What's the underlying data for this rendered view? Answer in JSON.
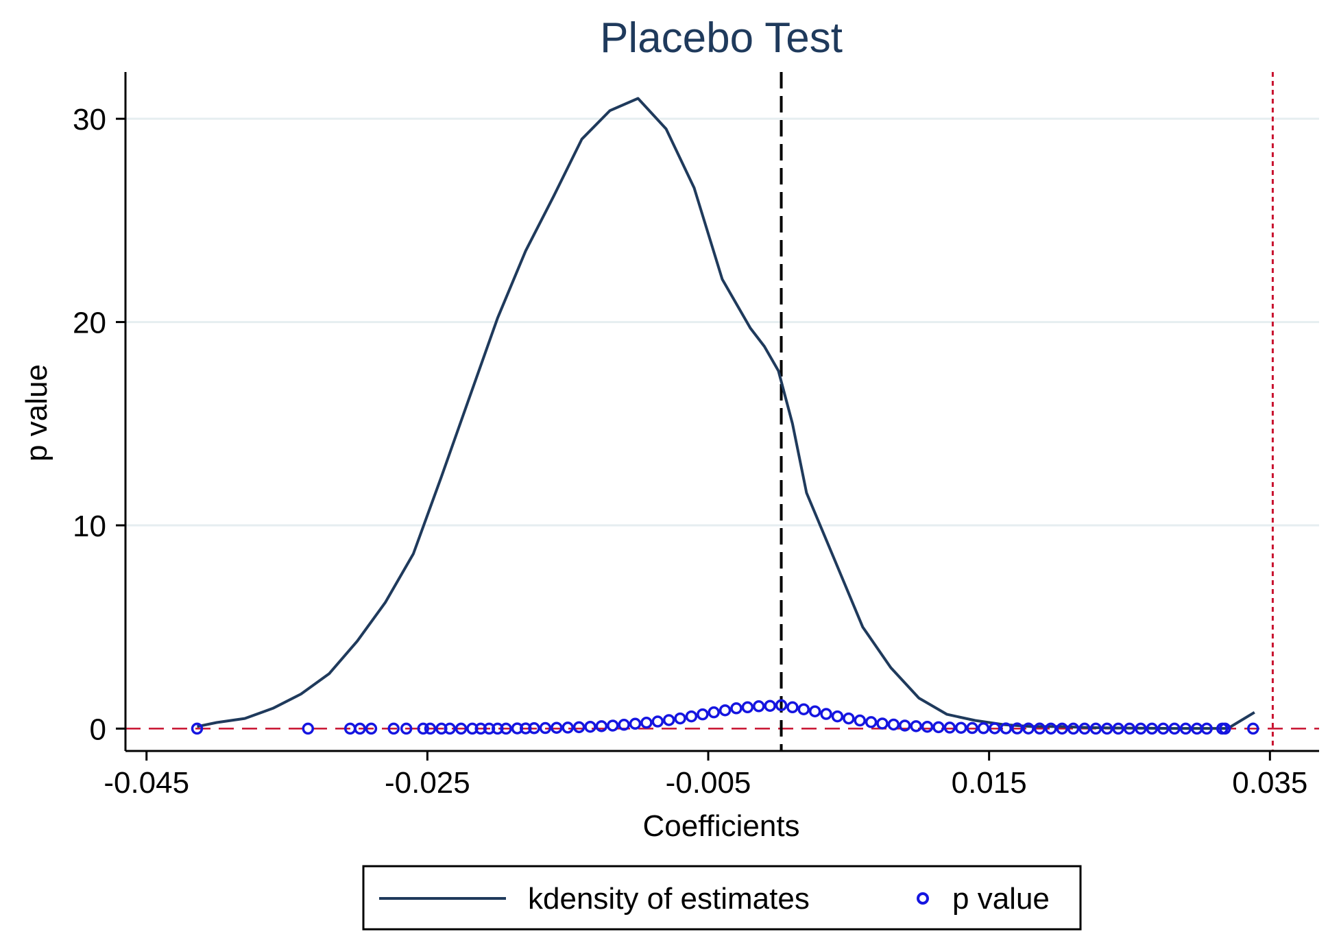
{
  "chart_data": {
    "type": "line",
    "title": "Placebo Test",
    "xlabel": "Coefficients",
    "ylabel": "p value",
    "xlim": [
      -0.0465,
      0.0385
    ],
    "ylim": [
      -1.1,
      32.3
    ],
    "x_ticks": [
      -0.045,
      -0.025,
      -0.005,
      0.015,
      0.035
    ],
    "x_tick_labels": [
      "-0.045",
      "-0.025",
      "-0.005",
      "0.015",
      "0.035"
    ],
    "y_ticks": [
      0,
      10,
      20,
      30
    ],
    "y_tick_labels": [
      "0",
      "10",
      "20",
      "30"
    ],
    "grid": "horizontal",
    "reference_lines": {
      "vertical_dashed_black": 0.0002,
      "vertical_dotted_red": 0.0352,
      "horizontal_dashed_red": 0.0
    },
    "series": [
      {
        "name": "kdensity of estimates",
        "kind": "line",
        "color": "#1f3a5c",
        "x": [
          -0.0414,
          -0.04,
          -0.038,
          -0.036,
          -0.034,
          -0.032,
          -0.03,
          -0.028,
          -0.026,
          -0.024,
          -0.022,
          -0.02,
          -0.018,
          -0.016,
          -0.014,
          -0.012,
          -0.01,
          -0.008,
          -0.006,
          -0.004,
          -0.002,
          -0.001,
          0.0,
          0.001,
          0.002,
          0.004,
          0.006,
          0.008,
          0.01,
          0.012,
          0.014,
          0.016,
          0.018,
          0.02,
          0.022,
          0.024,
          0.026,
          0.028,
          0.03,
          0.032,
          0.0339
        ],
        "y": [
          0.1,
          0.3,
          0.5,
          1.0,
          1.7,
          2.7,
          4.3,
          6.2,
          8.6,
          12.4,
          16.3,
          20.2,
          23.5,
          26.2,
          29.0,
          30.4,
          31.0,
          29.5,
          26.6,
          22.1,
          19.7,
          18.8,
          17.6,
          15.0,
          11.6,
          8.3,
          5.0,
          3.0,
          1.5,
          0.7,
          0.4,
          0.2,
          0.1,
          0.1,
          0.05,
          0.03,
          0.02,
          0.01,
          0.01,
          0.01,
          0.8
        ]
      },
      {
        "name": "p value",
        "kind": "scatter",
        "color": "#1515e0",
        "x": [
          -0.0414,
          -0.0335,
          -0.0305,
          -0.0298,
          -0.029,
          -0.0274,
          -0.0265,
          -0.0253,
          -0.0248,
          -0.024,
          -0.0234,
          -0.0226,
          -0.0218,
          -0.0212,
          -0.0206,
          -0.02,
          -0.0194,
          -0.0186,
          -0.018,
          -0.0174,
          -0.0166,
          -0.0158,
          -0.015,
          -0.0142,
          -0.0134,
          -0.0126,
          -0.0118,
          -0.011,
          -0.0102,
          -0.0094,
          -0.0086,
          -0.0078,
          -0.007,
          -0.0062,
          -0.0054,
          -0.0046,
          -0.0038,
          -0.003,
          -0.0022,
          -0.0014,
          -0.0006,
          0.0002,
          0.001,
          0.0018,
          0.0026,
          0.0034,
          0.0042,
          0.005,
          0.0058,
          0.0066,
          0.0074,
          0.0082,
          0.009,
          0.0098,
          0.0106,
          0.0114,
          0.0122,
          0.013,
          0.0138,
          0.0146,
          0.0154,
          0.0162,
          0.017,
          0.0178,
          0.0186,
          0.0194,
          0.0202,
          0.021,
          0.0218,
          0.0226,
          0.0234,
          0.0242,
          0.025,
          0.0258,
          0.0266,
          0.0274,
          0.0282,
          0.029,
          0.0298,
          0.0305,
          0.0316,
          0.0318,
          0.0338
        ],
        "y": [
          0.0,
          0.0,
          0.0,
          0.0,
          0.0,
          0.0,
          0.0,
          0.0,
          0.0,
          0.0,
          0.0,
          0.0,
          0.0,
          0.0,
          0.0,
          0.0,
          0.0,
          0.01,
          0.01,
          0.02,
          0.03,
          0.04,
          0.05,
          0.07,
          0.09,
          0.12,
          0.15,
          0.19,
          0.24,
          0.29,
          0.35,
          0.42,
          0.5,
          0.6,
          0.7,
          0.8,
          0.9,
          1.0,
          1.05,
          1.1,
          1.12,
          1.15,
          1.05,
          0.95,
          0.85,
          0.72,
          0.6,
          0.5,
          0.4,
          0.32,
          0.25,
          0.2,
          0.15,
          0.12,
          0.09,
          0.07,
          0.05,
          0.04,
          0.03,
          0.02,
          0.015,
          0.01,
          0.008,
          0.005,
          0.003,
          0.002,
          0.001,
          0.0,
          0.0,
          0.0,
          0.0,
          0.0,
          0.0,
          0.0,
          0.0,
          0.0,
          0.0,
          0.0,
          0.0,
          0.0,
          0.0,
          0.0,
          0.0
        ]
      }
    ],
    "legend": {
      "position": "bottom",
      "entries": [
        "kdensity of estimates",
        "p value"
      ]
    },
    "colors": {
      "title": "#1f3a5c",
      "line": "#1f3a5c",
      "points": "#1515e0",
      "ref_red": "#c8102e",
      "ref_black": "#000000",
      "grid": "#e6eef0"
    }
  }
}
